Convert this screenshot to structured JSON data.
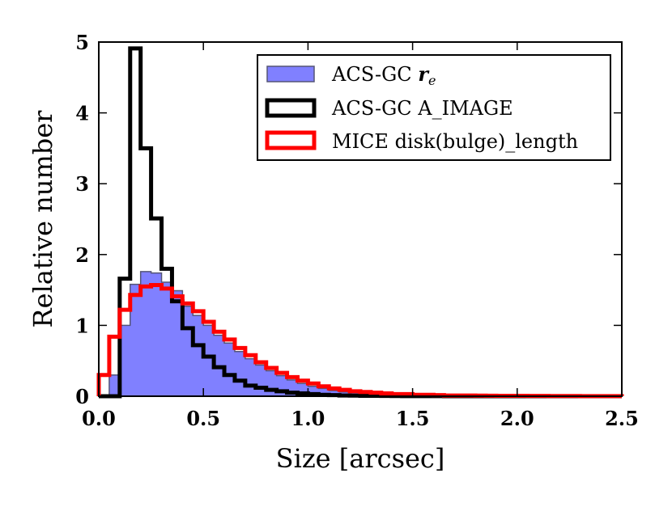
{
  "chart_data": {
    "type": "histogram",
    "xlabel": "Size [arcsec]",
    "ylabel": "Relative number",
    "xlim": [
      0,
      2.5
    ],
    "ylim": [
      0,
      5
    ],
    "xticks": [
      "0.0",
      "0.5",
      "1.0",
      "1.5",
      "2.0",
      "2.5"
    ],
    "yticks": [
      "0",
      "1",
      "2",
      "3",
      "4",
      "5"
    ],
    "grid": false,
    "legend_position": "top-right",
    "bin_edges_start": 0,
    "bin_width": 0.05,
    "series": [
      {
        "name": "ACS-GC r_e",
        "name_text": "ACS-GC",
        "name_math": "r",
        "name_sub": "e",
        "style": "filled",
        "color": "#8080ff",
        "edge_color": "#555577",
        "values": [
          0,
          0.3,
          1.0,
          1.58,
          1.76,
          1.74,
          1.61,
          1.49,
          1.27,
          1.14,
          1.0,
          0.86,
          0.75,
          0.63,
          0.53,
          0.44,
          0.36,
          0.29,
          0.23,
          0.18,
          0.14,
          0.11,
          0.08,
          0.06,
          0.05,
          0.04,
          0.03,
          0.02,
          0.015,
          0.01,
          0.01,
          0.007,
          0.005,
          0.004,
          0.003,
          0.002,
          0.002,
          0.001,
          0.001,
          0.001,
          0.001,
          0.001,
          0.001,
          0,
          0,
          0,
          0,
          0,
          0,
          0
        ]
      },
      {
        "name": "ACS-GC A_IMAGE",
        "name_text": "ACS-GC A_IMAGE",
        "style": "step",
        "color": "#000000",
        "values": [
          0,
          0,
          1.66,
          4.91,
          3.5,
          2.51,
          1.8,
          1.34,
          0.96,
          0.72,
          0.56,
          0.41,
          0.3,
          0.22,
          0.15,
          0.12,
          0.09,
          0.07,
          0.05,
          0.04,
          0.03,
          0.02,
          0.015,
          0.01,
          0.008,
          0.006,
          0.005,
          0.004,
          0.003,
          0.002,
          0.001,
          0.001,
          0.001,
          0,
          0,
          0,
          0,
          0,
          0,
          0,
          0,
          0,
          0,
          0,
          0,
          0,
          0,
          0,
          0,
          0
        ]
      },
      {
        "name": "MICE disk(bulge)_length",
        "name_text": "MICE disk(bulge)_length",
        "style": "step",
        "color": "#ff0000",
        "values": [
          0.3,
          0.84,
          1.22,
          1.43,
          1.55,
          1.57,
          1.52,
          1.41,
          1.31,
          1.2,
          1.05,
          0.91,
          0.8,
          0.68,
          0.58,
          0.48,
          0.4,
          0.33,
          0.27,
          0.22,
          0.18,
          0.14,
          0.11,
          0.09,
          0.07,
          0.06,
          0.05,
          0.04,
          0.03,
          0.03,
          0.02,
          0.02,
          0.015,
          0.01,
          0.01,
          0.01,
          0.008,
          0.007,
          0.006,
          0.005,
          0.005,
          0.004,
          0.004,
          0.003,
          0.003,
          0.003,
          0.002,
          0.002,
          0.002,
          0.002
        ]
      }
    ]
  }
}
